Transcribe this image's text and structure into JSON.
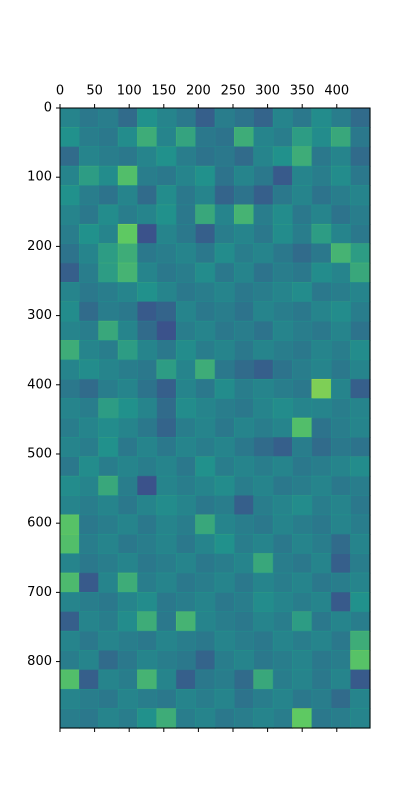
{
  "chart_data": {
    "type": "heatmap",
    "colormap": "viridis",
    "xlim": [
      0,
      448
    ],
    "ylim": [
      896,
      0
    ],
    "xticks": [
      0,
      50,
      100,
      150,
      200,
      250,
      300,
      350,
      400
    ],
    "yticks": [
      0,
      100,
      200,
      300,
      400,
      500,
      600,
      700,
      800
    ],
    "z": [
      [
        0.45,
        0.4,
        0.42,
        0.35,
        0.5,
        0.45,
        0.4,
        0.3,
        0.42,
        0.38,
        0.32,
        0.45,
        0.4,
        0.48,
        0.42,
        0.35
      ],
      [
        0.5,
        0.42,
        0.4,
        0.48,
        0.62,
        0.45,
        0.58,
        0.4,
        0.38,
        0.62,
        0.45,
        0.42,
        0.55,
        0.48,
        0.6,
        0.4
      ],
      [
        0.35,
        0.45,
        0.42,
        0.4,
        0.45,
        0.5,
        0.42,
        0.38,
        0.4,
        0.35,
        0.45,
        0.5,
        0.62,
        0.4,
        0.45,
        0.35
      ],
      [
        0.45,
        0.55,
        0.48,
        0.7,
        0.42,
        0.4,
        0.45,
        0.5,
        0.38,
        0.45,
        0.4,
        0.28,
        0.45,
        0.42,
        0.48,
        0.4
      ],
      [
        0.5,
        0.42,
        0.38,
        0.45,
        0.35,
        0.48,
        0.4,
        0.45,
        0.32,
        0.38,
        0.3,
        0.4,
        0.45,
        0.38,
        0.42,
        0.45
      ],
      [
        0.45,
        0.4,
        0.48,
        0.42,
        0.45,
        0.5,
        0.4,
        0.6,
        0.45,
        0.65,
        0.42,
        0.48,
        0.4,
        0.45,
        0.38,
        0.42
      ],
      [
        0.42,
        0.5,
        0.45,
        0.75,
        0.25,
        0.45,
        0.4,
        0.3,
        0.42,
        0.45,
        0.4,
        0.48,
        0.42,
        0.55,
        0.45,
        0.4
      ],
      [
        0.38,
        0.45,
        0.55,
        0.62,
        0.4,
        0.42,
        0.45,
        0.4,
        0.48,
        0.42,
        0.45,
        0.4,
        0.35,
        0.4,
        0.65,
        0.55
      ],
      [
        0.3,
        0.42,
        0.55,
        0.65,
        0.45,
        0.4,
        0.42,
        0.48,
        0.4,
        0.45,
        0.38,
        0.42,
        0.4,
        0.48,
        0.45,
        0.6
      ],
      [
        0.45,
        0.4,
        0.42,
        0.45,
        0.5,
        0.45,
        0.4,
        0.42,
        0.45,
        0.4,
        0.42,
        0.45,
        0.48,
        0.4,
        0.42,
        0.45
      ],
      [
        0.48,
        0.35,
        0.42,
        0.4,
        0.28,
        0.32,
        0.45,
        0.4,
        0.42,
        0.38,
        0.45,
        0.42,
        0.4,
        0.45,
        0.48,
        0.42
      ],
      [
        0.45,
        0.42,
        0.6,
        0.45,
        0.35,
        0.25,
        0.42,
        0.45,
        0.4,
        0.42,
        0.38,
        0.45,
        0.42,
        0.4,
        0.45,
        0.38
      ],
      [
        0.62,
        0.45,
        0.42,
        0.55,
        0.45,
        0.4,
        0.48,
        0.42,
        0.45,
        0.4,
        0.45,
        0.42,
        0.4,
        0.45,
        0.42,
        0.48
      ],
      [
        0.45,
        0.48,
        0.45,
        0.42,
        0.4,
        0.55,
        0.45,
        0.62,
        0.4,
        0.35,
        0.3,
        0.38,
        0.42,
        0.45,
        0.4,
        0.45
      ],
      [
        0.4,
        0.35,
        0.42,
        0.45,
        0.38,
        0.3,
        0.45,
        0.4,
        0.48,
        0.42,
        0.45,
        0.42,
        0.4,
        0.8,
        0.45,
        0.3
      ],
      [
        0.45,
        0.42,
        0.55,
        0.5,
        0.45,
        0.35,
        0.48,
        0.45,
        0.42,
        0.4,
        0.45,
        0.48,
        0.45,
        0.45,
        0.42,
        0.45
      ],
      [
        0.42,
        0.45,
        0.48,
        0.45,
        0.4,
        0.32,
        0.42,
        0.45,
        0.4,
        0.45,
        0.42,
        0.45,
        0.7,
        0.38,
        0.42,
        0.45
      ],
      [
        0.45,
        0.42,
        0.5,
        0.4,
        0.45,
        0.4,
        0.45,
        0.42,
        0.45,
        0.4,
        0.35,
        0.3,
        0.42,
        0.35,
        0.4,
        0.38
      ],
      [
        0.4,
        0.48,
        0.42,
        0.45,
        0.42,
        0.45,
        0.4,
        0.5,
        0.42,
        0.45,
        0.42,
        0.45,
        0.4,
        0.42,
        0.45,
        0.48
      ],
      [
        0.48,
        0.45,
        0.6,
        0.42,
        0.25,
        0.45,
        0.42,
        0.45,
        0.48,
        0.42,
        0.45,
        0.4,
        0.42,
        0.45,
        0.4,
        0.42
      ],
      [
        0.45,
        0.42,
        0.45,
        0.4,
        0.45,
        0.48,
        0.45,
        0.4,
        0.42,
        0.3,
        0.42,
        0.45,
        0.48,
        0.42,
        0.45,
        0.4
      ],
      [
        0.72,
        0.4,
        0.42,
        0.45,
        0.4,
        0.45,
        0.42,
        0.6,
        0.45,
        0.42,
        0.4,
        0.45,
        0.42,
        0.4,
        0.45,
        0.42
      ],
      [
        0.7,
        0.42,
        0.45,
        0.4,
        0.42,
        0.45,
        0.4,
        0.45,
        0.5,
        0.42,
        0.45,
        0.4,
        0.45,
        0.42,
        0.35,
        0.45
      ],
      [
        0.45,
        0.4,
        0.42,
        0.45,
        0.4,
        0.42,
        0.45,
        0.4,
        0.42,
        0.45,
        0.6,
        0.42,
        0.4,
        0.45,
        0.3,
        0.42
      ],
      [
        0.68,
        0.28,
        0.45,
        0.62,
        0.42,
        0.45,
        0.4,
        0.42,
        0.45,
        0.4,
        0.45,
        0.42,
        0.45,
        0.4,
        0.42,
        0.45
      ],
      [
        0.45,
        0.42,
        0.4,
        0.45,
        0.48,
        0.4,
        0.42,
        0.45,
        0.4,
        0.42,
        0.48,
        0.45,
        0.42,
        0.45,
        0.28,
        0.5
      ],
      [
        0.3,
        0.45,
        0.42,
        0.48,
        0.62,
        0.4,
        0.65,
        0.45,
        0.42,
        0.4,
        0.45,
        0.42,
        0.55,
        0.4,
        0.45,
        0.42
      ],
      [
        0.45,
        0.4,
        0.45,
        0.42,
        0.4,
        0.45,
        0.42,
        0.4,
        0.45,
        0.42,
        0.4,
        0.45,
        0.42,
        0.45,
        0.4,
        0.62
      ],
      [
        0.42,
        0.45,
        0.35,
        0.4,
        0.45,
        0.42,
        0.4,
        0.32,
        0.42,
        0.45,
        0.4,
        0.42,
        0.45,
        0.4,
        0.42,
        0.72
      ],
      [
        0.7,
        0.3,
        0.45,
        0.42,
        0.65,
        0.45,
        0.3,
        0.4,
        0.42,
        0.35,
        0.6,
        0.42,
        0.45,
        0.4,
        0.45,
        0.28
      ],
      [
        0.45,
        0.42,
        0.4,
        0.45,
        0.42,
        0.4,
        0.45,
        0.42,
        0.45,
        0.38,
        0.42,
        0.45,
        0.4,
        0.42,
        0.35,
        0.45
      ],
      [
        0.42,
        0.4,
        0.45,
        0.42,
        0.5,
        0.62,
        0.42,
        0.45,
        0.4,
        0.42,
        0.45,
        0.42,
        0.75,
        0.4,
        0.42,
        0.45
      ]
    ]
  }
}
